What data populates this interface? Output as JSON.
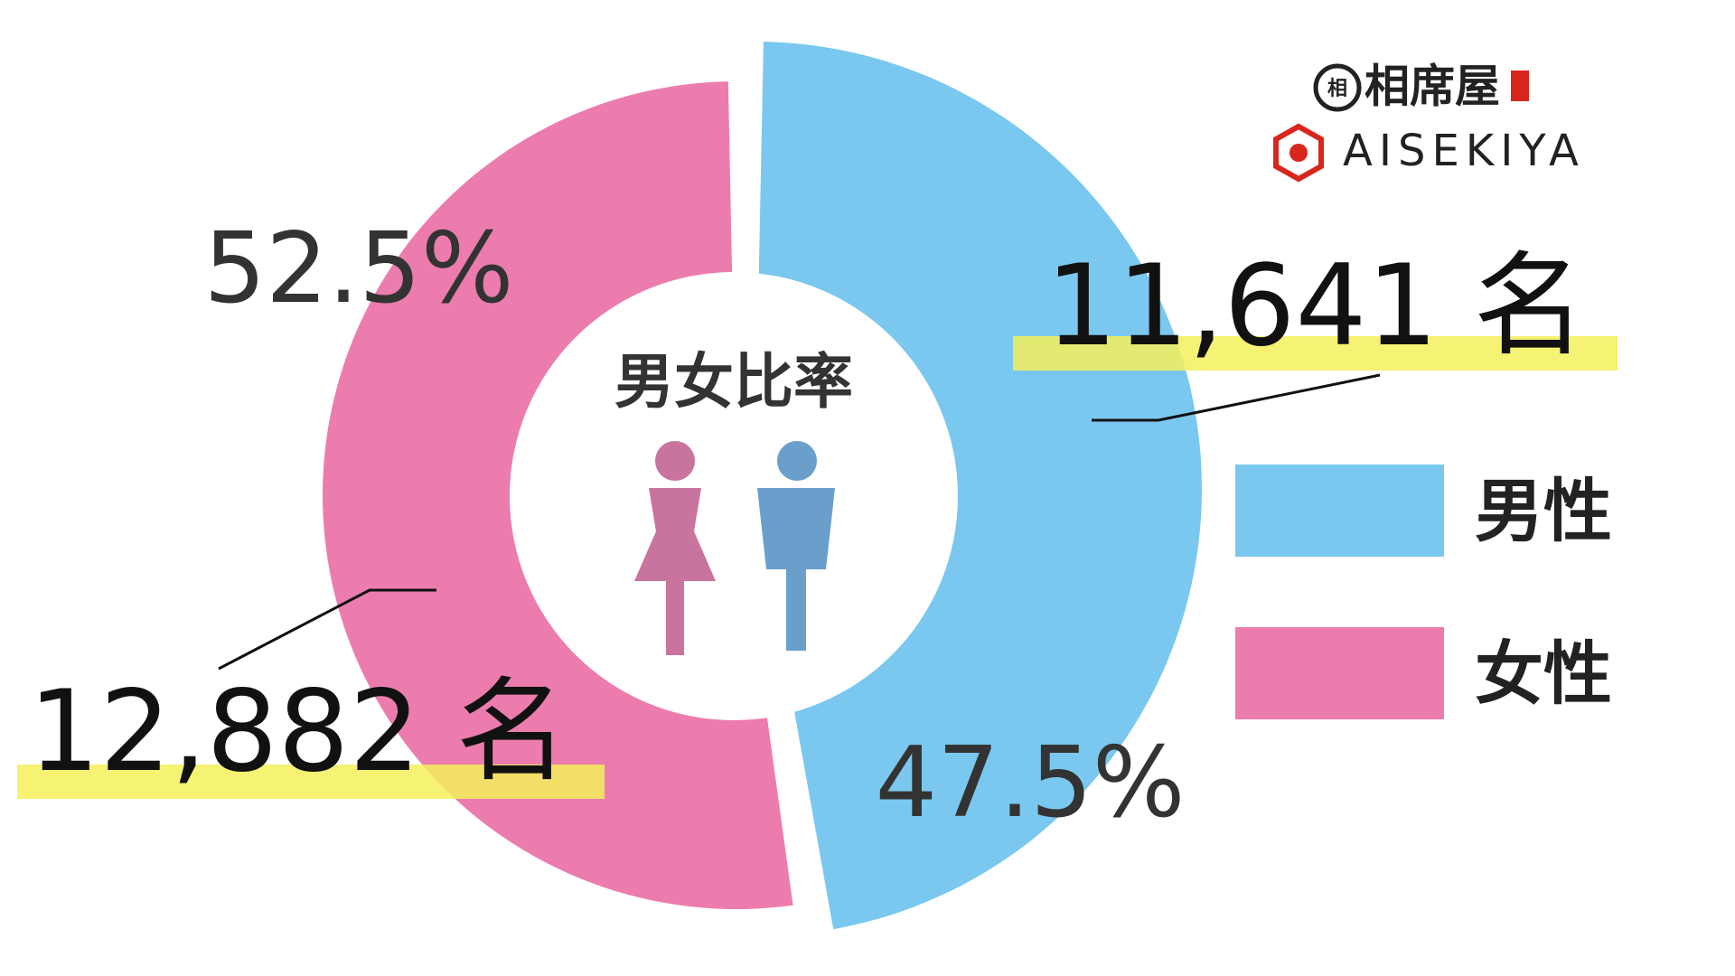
{
  "chart_data": {
    "type": "donut",
    "title": "男女比率",
    "categories": [
      "男性",
      "女性"
    ],
    "values": [
      47.5,
      52.5
    ],
    "value_labels": [
      "47.5%",
      "52.5%"
    ],
    "counts": [
      11641,
      12882
    ],
    "count_labels": [
      "11,641 名",
      "12,882 名"
    ],
    "colors": [
      "#7ac8ef",
      "#ec7cae"
    ]
  },
  "logo": {
    "japanese": "相席屋",
    "english": "AISEKIYA"
  }
}
